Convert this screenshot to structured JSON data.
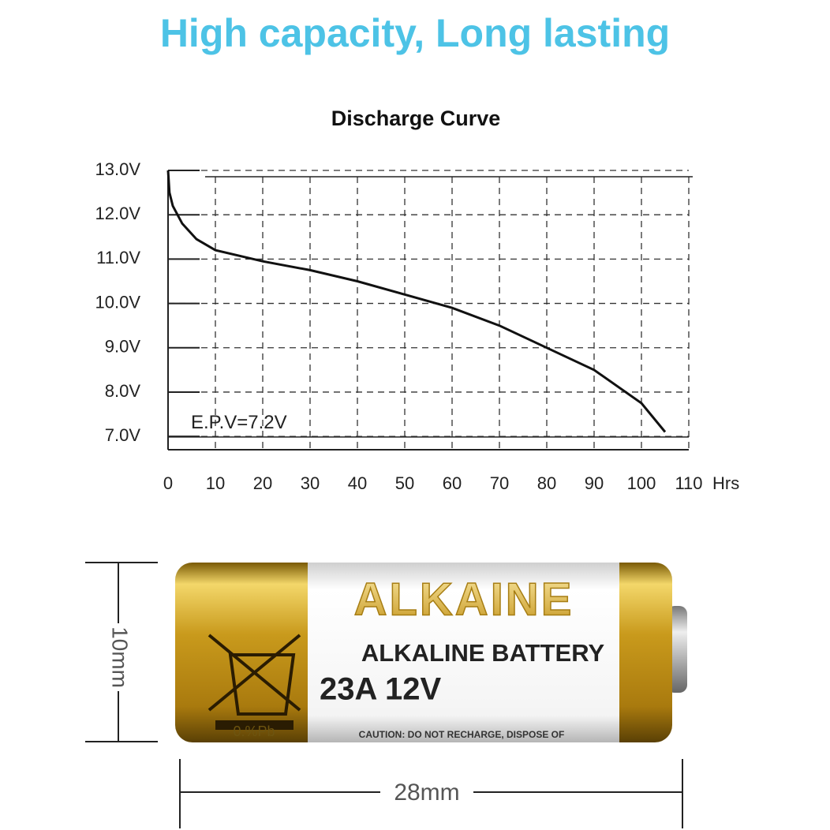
{
  "headline": "High capacity, Long lasting",
  "chart_data": {
    "type": "line",
    "title": "Discharge Curve",
    "x": [
      0,
      0.3,
      1,
      3,
      6,
      10,
      20,
      30,
      40,
      50,
      60,
      70,
      80,
      90,
      100,
      105
    ],
    "values": [
      13.0,
      12.5,
      12.2,
      11.8,
      11.45,
      11.2,
      10.95,
      10.75,
      10.5,
      10.2,
      9.9,
      9.5,
      9.0,
      8.5,
      7.75,
      7.1
    ],
    "color": "#111111",
    "xlim": [
      0,
      110
    ],
    "xticks": [
      0,
      10,
      20,
      30,
      40,
      50,
      60,
      70,
      80,
      90,
      100,
      110
    ],
    "x_label": "Hrs",
    "ylim": [
      6.7,
      13.0
    ],
    "yticks": [
      {
        "value": 7,
        "label": "7.0V"
      },
      {
        "value": 8,
        "label": "8.0V"
      },
      {
        "value": 9,
        "label": "9.0V"
      },
      {
        "value": 10,
        "label": "10.0V"
      },
      {
        "value": 11,
        "label": "11.0V"
      },
      {
        "value": 12,
        "label": "12.0V"
      },
      {
        "value": 13,
        "label": "13.0V"
      }
    ],
    "grid": true,
    "annotation": {
      "text": "E.P.V=7.2V",
      "value": 7.2
    }
  },
  "battery": {
    "brand": "ALKAINE",
    "type": "ALKALINE BATTERY",
    "model": "23A 12V",
    "pb": "0.%Pb",
    "caution": "CAUTION: DO NOT RECHARGE, DISPOSE OF",
    "height": "10mm",
    "length": "28mm"
  }
}
